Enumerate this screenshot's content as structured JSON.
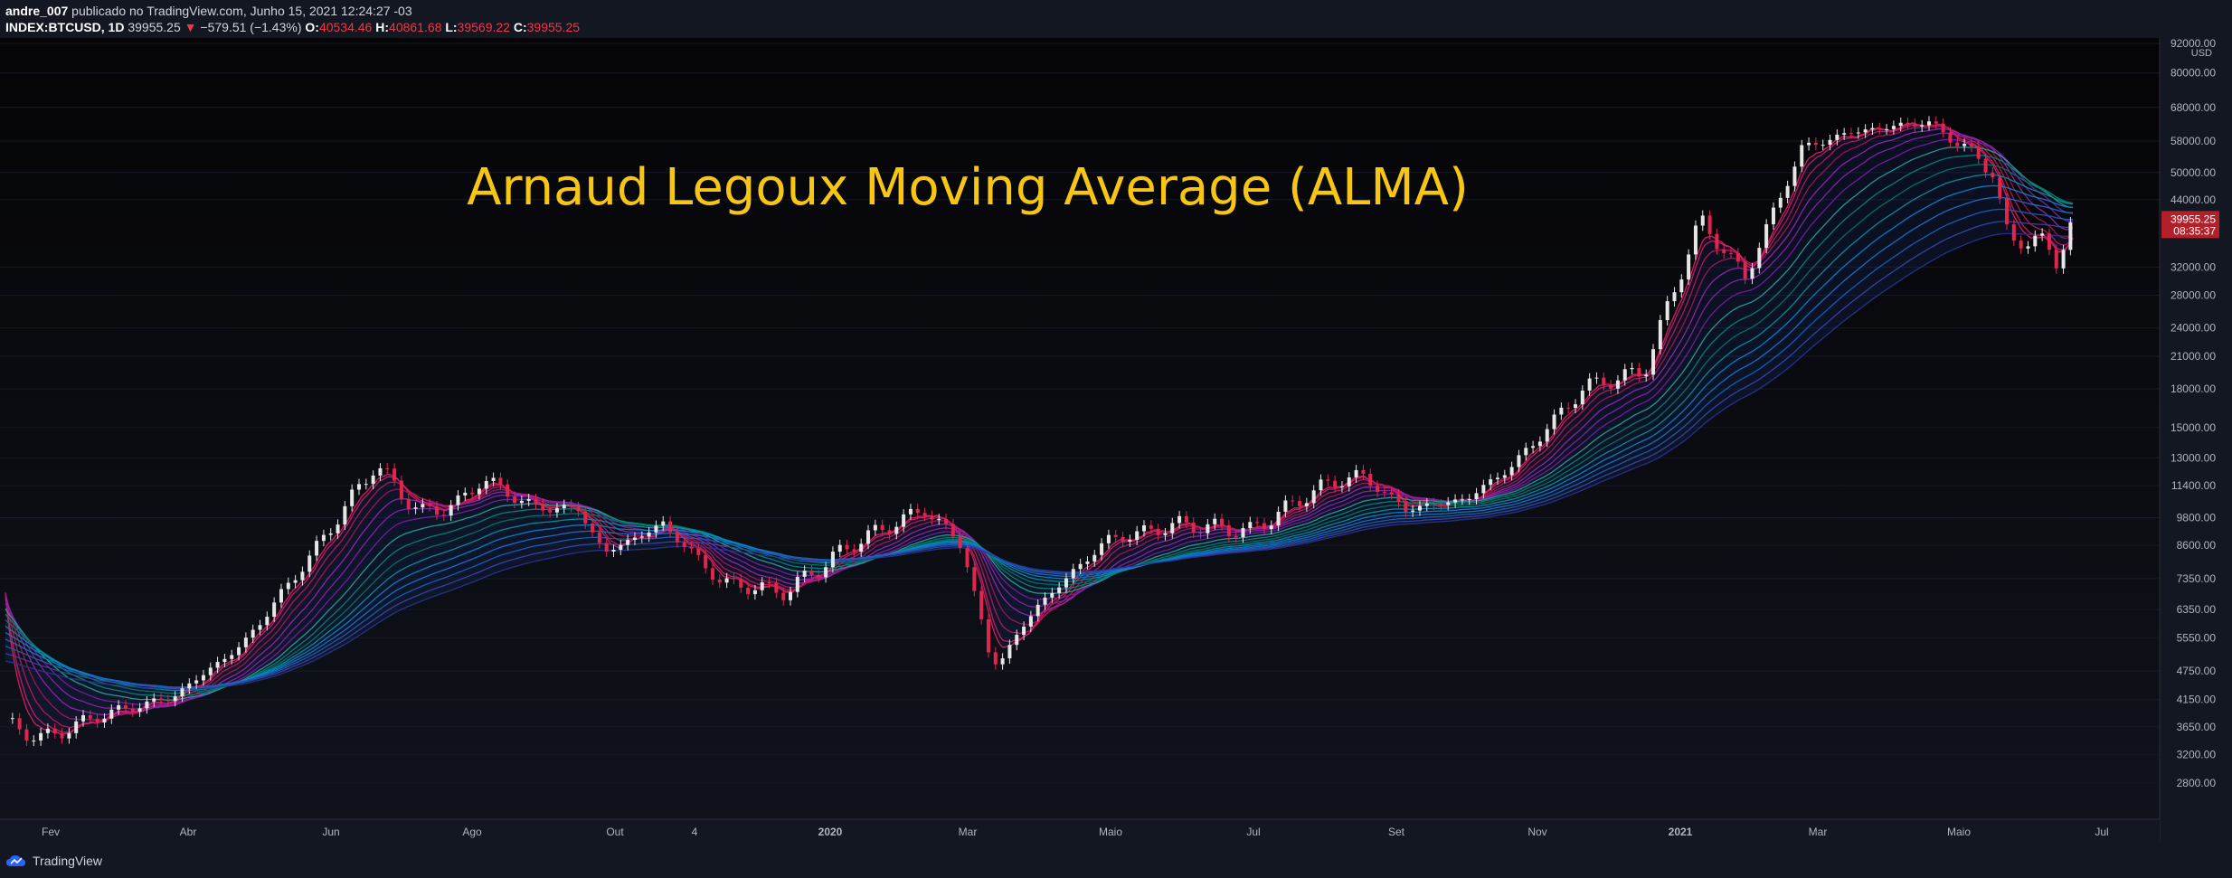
{
  "header": {
    "author": "andre_007",
    "published": "publicado no TradingView.com, Junho 15, 2021 12:24:27 -03",
    "symbol": "INDEX:BTCUSD, 1D",
    "last": "39955.25",
    "arrow": "▼",
    "change": "−579.51 (−1.43%)",
    "o_label": "O:",
    "o": "40534.46",
    "h_label": "H:",
    "h": "40861.68",
    "l_label": "L:",
    "l": "39569.22",
    "c_label": "C:",
    "c": "39955.25"
  },
  "overlay_title": "Arnaud Legoux Moving Average (ALMA)",
  "footer": {
    "brand": "TradingView"
  },
  "colors": {
    "background": "#0b0c10",
    "up": "#26a69a",
    "down": "#ef5350",
    "title": "#f7c614",
    "price_tag": "#b2202a"
  },
  "chart_data": {
    "type": "line",
    "title": "Arnaud Legoux Moving Average (ALMA)",
    "symbol": "INDEX:BTCUSD, 1D",
    "y_scale": "log",
    "ylim": [
      2400,
      92000
    ],
    "y_unit": "USD",
    "y_ticks": [
      "92000.00",
      "80000.00",
      "68000.00",
      "58000.00",
      "50000.00",
      "44000.00",
      "32000.00",
      "28000.00",
      "24000.00",
      "21000.00",
      "18000.00",
      "15000.00",
      "13000.00",
      "11400.00",
      "9800.00",
      "8600.00",
      "7350.00",
      "6350.00",
      "5550.00",
      "4750.00",
      "4150.00",
      "3650.00",
      "3200.00",
      "2800.00"
    ],
    "x_ticks": [
      "Fev",
      "Abr",
      "Jun",
      "Ago",
      "Out",
      "4",
      "2020",
      "Mar",
      "Maio",
      "Jul",
      "Set",
      "Nov",
      "2021",
      "Mar",
      "Maio",
      "Jul"
    ],
    "last_price_label": "39955.25",
    "countdown_label": "08:35:37",
    "price_series": {
      "name": "BTCUSD",
      "x": [
        "2019-01-20",
        "2019-02-05",
        "2019-03-01",
        "2019-04-01",
        "2019-05-01",
        "2019-06-01",
        "2019-06-26",
        "2019-07-15",
        "2019-08-01",
        "2019-08-10",
        "2019-09-01",
        "2019-09-20",
        "2019-10-01",
        "2019-10-26",
        "2019-11-20",
        "2019-12-17",
        "2020-01-15",
        "2020-02-14",
        "2020-03-01",
        "2020-03-12",
        "2020-03-16",
        "2020-04-01",
        "2020-05-01",
        "2020-06-01",
        "2020-07-01",
        "2020-08-01",
        "2020-08-17",
        "2020-09-05",
        "2020-10-01",
        "2020-10-21",
        "2020-11-20",
        "2020-12-15",
        "2021-01-08",
        "2021-01-27",
        "2021-02-20",
        "2021-03-13",
        "2021-04-14",
        "2021-05-01",
        "2021-05-12",
        "2021-05-19",
        "2021-06-01",
        "2021-06-08",
        "2021-06-15"
      ],
      "values": [
        3700,
        3450,
        3850,
        4200,
        5400,
        8500,
        12600,
        10000,
        10500,
        11800,
        10300,
        10200,
        8300,
        9500,
        7200,
        6900,
        8700,
        10200,
        8600,
        5200,
        4900,
        6400,
        8800,
        9500,
        9200,
        11400,
        12000,
        10200,
        10700,
        12600,
        18200,
        19500,
        40000,
        30500,
        56000,
        60500,
        63500,
        56000,
        50000,
        36000,
        36500,
        33000,
        39955
      ]
    },
    "ribbon": {
      "lines": 16,
      "fast_length": 10,
      "slow_length": 200,
      "colors": [
        "#e91e63",
        "#d81b60",
        "#c2185b",
        "#ad1457",
        "#9c27b0",
        "#8e24aa",
        "#7b1fa2",
        "#26a69a",
        "#00897b",
        "#00796b",
        "#0097a7",
        "#0288d1",
        "#1976d2",
        "#1565c0",
        "#3949ab",
        "#283593"
      ]
    }
  }
}
